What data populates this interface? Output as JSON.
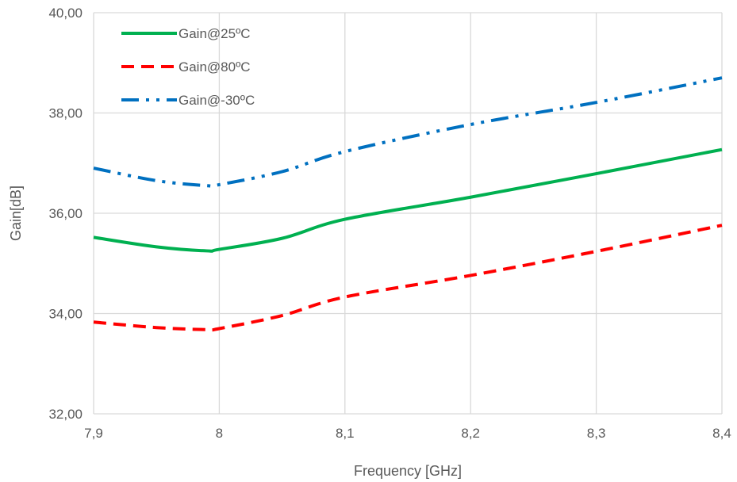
{
  "chart_data": {
    "type": "line",
    "xlabel": "Frequency [GHz]",
    "ylabel": "Gain[dB]",
    "xlim": [
      7.9,
      8.4
    ],
    "ylim": [
      32,
      40
    ],
    "x_ticks": [
      "7,9",
      "8",
      "8,1",
      "8,2",
      "8,3",
      "8,4"
    ],
    "x_tick_values": [
      7.9,
      8.0,
      8.1,
      8.2,
      8.3,
      8.4
    ],
    "y_ticks": [
      "32,00",
      "34,00",
      "36,00",
      "38,00",
      "40,00"
    ],
    "y_tick_values": [
      32,
      34,
      36,
      38,
      40
    ],
    "grid": true,
    "legend_position": "top-left",
    "x": [
      7.9,
      7.95,
      7.99,
      8.0,
      8.05,
      8.1,
      8.2,
      8.3,
      8.4
    ],
    "series": [
      {
        "name": "Gain@25ºC",
        "color": "#00b050",
        "dash": "solid",
        "values": [
          35.52,
          35.33,
          35.25,
          35.28,
          35.5,
          35.88,
          36.32,
          36.79,
          37.27
        ]
      },
      {
        "name": "Gain@80ºC",
        "color": "#ff0000",
        "dash": "dash",
        "values": [
          33.83,
          33.72,
          33.68,
          33.7,
          33.96,
          34.33,
          34.76,
          35.24,
          35.76
        ]
      },
      {
        "name": "Gain@-30ºC",
        "color": "#0070c0",
        "dash": "dash-dot-dot",
        "values": [
          36.9,
          36.65,
          36.55,
          36.57,
          36.83,
          37.23,
          37.77,
          38.21,
          38.7
        ]
      }
    ]
  }
}
